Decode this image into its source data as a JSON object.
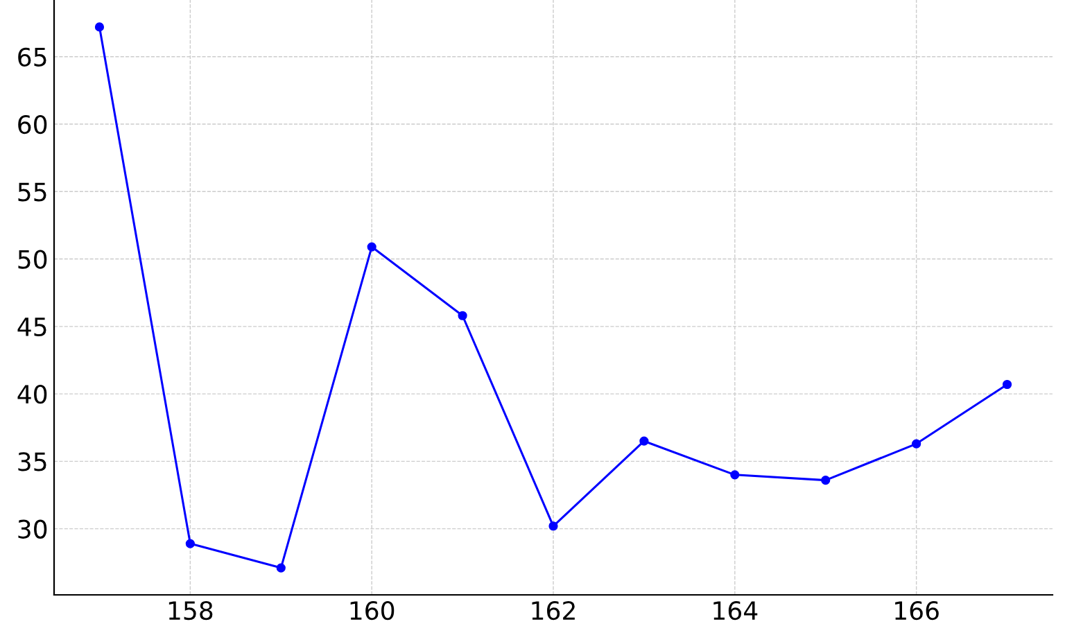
{
  "chart_data": {
    "type": "line",
    "x": [
      157,
      158,
      159,
      160,
      161,
      162,
      163,
      164,
      165,
      166,
      167
    ],
    "series": [
      {
        "color": "#0000ff",
        "values": [
          67.2,
          28.9,
          27.1,
          50.9,
          45.8,
          30.2,
          36.5,
          34.0,
          33.6,
          36.3,
          40.7
        ]
      }
    ],
    "xlim": [
      156.5,
      167.5
    ],
    "ylim": [
      25.1,
      69.2
    ],
    "xticks": [
      158,
      160,
      162,
      164,
      166
    ],
    "yticks": [
      30,
      35,
      40,
      45,
      50,
      55,
      60,
      65
    ],
    "grid": true,
    "marker": "circle",
    "line_style": "solid"
  }
}
